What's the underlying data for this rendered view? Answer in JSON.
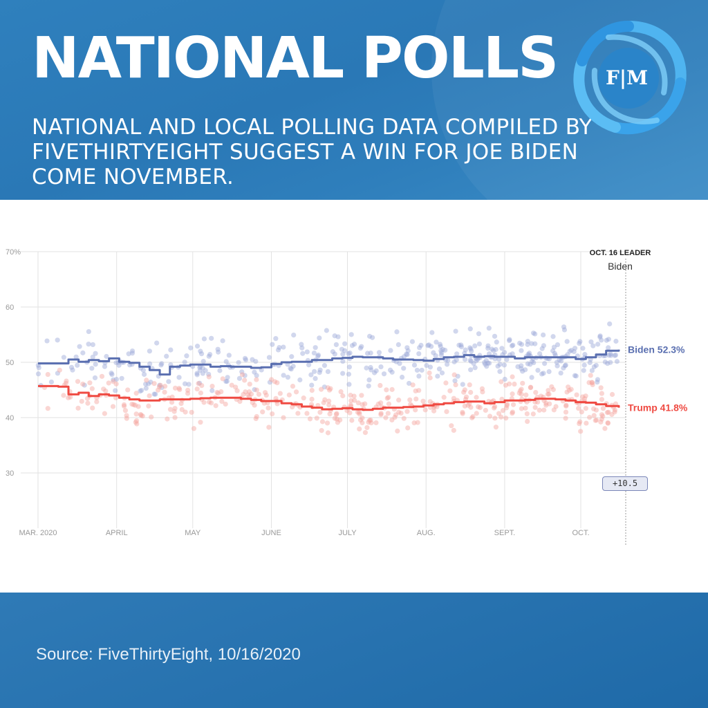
{
  "header": {
    "title": "NATIONAL POLLS",
    "subtitle": "NATIONAL AND LOCAL POLLING DATA COMPILED BY FIVETHIRTYEIGHT SUGGEST A WIN FOR JOE BIDEN COME NOVEMBER.",
    "logo_text": "F|M",
    "logo_icon": "swirl-logo-icon"
  },
  "footer": {
    "source": "Source: FiveThirtyEight, 10/16/2020"
  },
  "colors": {
    "header_bg": "#2b79b7",
    "biden": "#5a6fb0",
    "trump": "#ef4a42",
    "biden_dots": "#9aa6d6",
    "trump_dots": "#f4a39e",
    "grid": "#e2e2e2"
  },
  "chart_data": {
    "type": "scatter",
    "title": "",
    "xlabel": "",
    "ylabel": "",
    "ylim": [
      20,
      70
    ],
    "yticks": [
      30,
      40,
      50,
      60,
      70
    ],
    "ytick_labels": [
      "30",
      "40",
      "50",
      "60",
      "70%"
    ],
    "x_categories": [
      "MAR. 2020",
      "APRIL",
      "MAY",
      "JUNE",
      "JULY",
      "AUG.",
      "SEPT.",
      "OCT."
    ],
    "x_range_days": [
      0,
      229
    ],
    "x_tick_days": [
      0,
      31,
      61,
      92,
      122,
      153,
      184,
      214
    ],
    "grid": true,
    "leader": {
      "label": "OCT. 16 LEADER",
      "name": "Biden",
      "margin": "+10.5"
    },
    "series": [
      {
        "name": "Biden",
        "end_label": "Biden 52.3%",
        "final_value": 52.3,
        "color": "#5a6fb0",
        "trend": [
          [
            0,
            49.8
          ],
          [
            8,
            49.8
          ],
          [
            12,
            50.5
          ],
          [
            16,
            50.1
          ],
          [
            20,
            50.4
          ],
          [
            24,
            50.2
          ],
          [
            28,
            50.7
          ],
          [
            32,
            50.1
          ],
          [
            36,
            49.9
          ],
          [
            40,
            49.2
          ],
          [
            44,
            48.6
          ],
          [
            48,
            47.8
          ],
          [
            52,
            49.2
          ],
          [
            56,
            49.4
          ],
          [
            60,
            49.6
          ],
          [
            64,
            49.6
          ],
          [
            68,
            49.2
          ],
          [
            72,
            49.3
          ],
          [
            76,
            49.2
          ],
          [
            80,
            49.2
          ],
          [
            84,
            49.0
          ],
          [
            88,
            49.1
          ],
          [
            92,
            49.7
          ],
          [
            96,
            50.0
          ],
          [
            100,
            50.1
          ],
          [
            104,
            50.1
          ],
          [
            108,
            50.4
          ],
          [
            112,
            50.4
          ],
          [
            116,
            50.7
          ],
          [
            120,
            50.8
          ],
          [
            124,
            51.0
          ],
          [
            128,
            50.9
          ],
          [
            132,
            50.9
          ],
          [
            136,
            50.7
          ],
          [
            140,
            50.5
          ],
          [
            144,
            50.5
          ],
          [
            148,
            50.4
          ],
          [
            152,
            50.3
          ],
          [
            156,
            50.6
          ],
          [
            160,
            50.9
          ],
          [
            164,
            51.0
          ],
          [
            168,
            51.3
          ],
          [
            172,
            51.0
          ],
          [
            176,
            51.1
          ],
          [
            180,
            51.0
          ],
          [
            184,
            51.0
          ],
          [
            188,
            50.7
          ],
          [
            192,
            50.9
          ],
          [
            196,
            50.9
          ],
          [
            200,
            50.9
          ],
          [
            204,
            50.9
          ],
          [
            208,
            50.9
          ],
          [
            212,
            50.6
          ],
          [
            216,
            50.9
          ],
          [
            220,
            51.4
          ],
          [
            224,
            52.1
          ],
          [
            229,
            52.3
          ]
        ]
      },
      {
        "name": "Trump",
        "end_label": "Trump 41.8%",
        "final_value": 41.8,
        "color": "#ef4a42",
        "trend": [
          [
            0,
            45.7
          ],
          [
            8,
            45.6
          ],
          [
            12,
            44.2
          ],
          [
            16,
            44.5
          ],
          [
            20,
            43.9
          ],
          [
            24,
            44.2
          ],
          [
            28,
            44.0
          ],
          [
            32,
            43.6
          ],
          [
            36,
            43.3
          ],
          [
            40,
            43.1
          ],
          [
            44,
            43.1
          ],
          [
            48,
            43.3
          ],
          [
            52,
            43.3
          ],
          [
            56,
            43.3
          ],
          [
            60,
            43.4
          ],
          [
            64,
            43.5
          ],
          [
            68,
            43.6
          ],
          [
            72,
            43.6
          ],
          [
            76,
            43.6
          ],
          [
            80,
            43.4
          ],
          [
            84,
            43.2
          ],
          [
            88,
            43.0
          ],
          [
            92,
            43.0
          ],
          [
            96,
            42.6
          ],
          [
            100,
            42.4
          ],
          [
            104,
            42.0
          ],
          [
            108,
            41.8
          ],
          [
            112,
            41.5
          ],
          [
            116,
            41.6
          ],
          [
            120,
            41.7
          ],
          [
            124,
            41.5
          ],
          [
            128,
            41.4
          ],
          [
            132,
            41.6
          ],
          [
            136,
            41.8
          ],
          [
            140,
            41.8
          ],
          [
            144,
            41.9
          ],
          [
            148,
            42.0
          ],
          [
            152,
            42.2
          ],
          [
            156,
            42.4
          ],
          [
            160,
            42.6
          ],
          [
            164,
            42.8
          ],
          [
            168,
            42.9
          ],
          [
            172,
            42.9
          ],
          [
            176,
            42.6
          ],
          [
            180,
            42.8
          ],
          [
            184,
            43.1
          ],
          [
            188,
            43.1
          ],
          [
            192,
            43.2
          ],
          [
            196,
            43.4
          ],
          [
            200,
            43.4
          ],
          [
            204,
            43.3
          ],
          [
            208,
            43.1
          ],
          [
            212,
            42.8
          ],
          [
            216,
            42.7
          ],
          [
            220,
            42.4
          ],
          [
            224,
            42.1
          ],
          [
            229,
            41.8
          ]
        ]
      }
    ],
    "poll_points_note": "Individual polls shown as translucent dots scattered around each trend line (approx. Biden 44-58%, Trump 32-50%)."
  }
}
